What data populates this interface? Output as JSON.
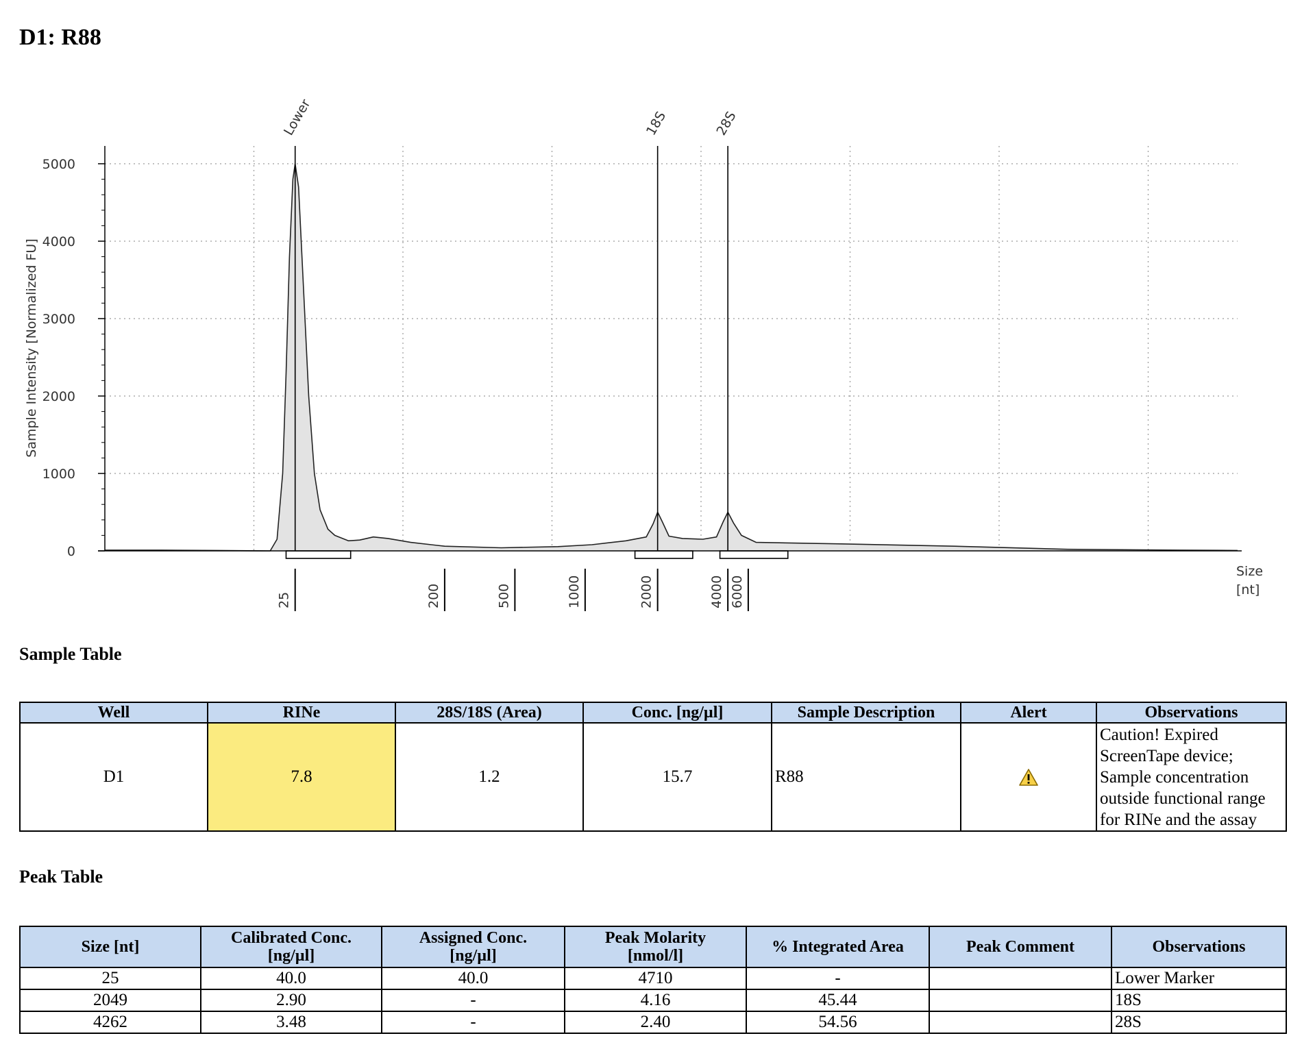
{
  "page_title": "D1: R88",
  "chart_data": {
    "type": "area",
    "ylabel": "Sample Intensity [Normalized FU]",
    "xlabel": "Size\n[nt]",
    "xlabel_lines": [
      "Size",
      "[nt]"
    ],
    "ylim": [
      0,
      5000
    ],
    "y_ticks": [
      0,
      1000,
      2000,
      3000,
      4000,
      5000
    ],
    "x_size_ticks": [
      {
        "label": "25",
        "position": 0.168
      },
      {
        "label": "200",
        "position": 0.3
      },
      {
        "label": "500",
        "position": 0.362
      },
      {
        "label": "1000",
        "position": 0.424
      },
      {
        "label": "2000",
        "position": 0.488
      },
      {
        "label": "4000",
        "position": 0.55
      },
      {
        "label": "6000",
        "position": 0.568
      }
    ],
    "grid": true,
    "peak_labels": [
      {
        "label": "Lower",
        "position": 0.168
      },
      {
        "label": "18S",
        "position": 0.488
      },
      {
        "label": "28S",
        "position": 0.55
      }
    ],
    "trace": [
      [
        0,
        10
      ],
      [
        0.05,
        10
      ],
      [
        0.1,
        5
      ],
      [
        0.146,
        0
      ],
      [
        0.152,
        150
      ],
      [
        0.157,
        1000
      ],
      [
        0.16,
        2300
      ],
      [
        0.163,
        3800
      ],
      [
        0.166,
        4800
      ],
      [
        0.168,
        5000
      ],
      [
        0.171,
        4700
      ],
      [
        0.175,
        3500
      ],
      [
        0.18,
        2000
      ],
      [
        0.185,
        1000
      ],
      [
        0.19,
        530
      ],
      [
        0.197,
        280
      ],
      [
        0.203,
        200
      ],
      [
        0.215,
        130
      ],
      [
        0.225,
        140
      ],
      [
        0.237,
        180
      ],
      [
        0.25,
        160
      ],
      [
        0.27,
        110
      ],
      [
        0.3,
        60
      ],
      [
        0.35,
        40
      ],
      [
        0.4,
        55
      ],
      [
        0.43,
        80
      ],
      [
        0.46,
        130
      ],
      [
        0.478,
        180
      ],
      [
        0.484,
        350
      ],
      [
        0.488,
        500
      ],
      [
        0.492,
        380
      ],
      [
        0.498,
        190
      ],
      [
        0.51,
        160
      ],
      [
        0.528,
        150
      ],
      [
        0.54,
        180
      ],
      [
        0.546,
        380
      ],
      [
        0.55,
        500
      ],
      [
        0.555,
        360
      ],
      [
        0.562,
        200
      ],
      [
        0.575,
        110
      ],
      [
        0.65,
        90
      ],
      [
        0.75,
        60
      ],
      [
        0.85,
        20
      ],
      [
        0.95,
        10
      ],
      [
        1.0,
        5
      ]
    ],
    "integration_ranges": [
      [
        0.16,
        0.217
      ],
      [
        0.468,
        0.519
      ],
      [
        0.543,
        0.603
      ]
    ]
  },
  "sample_table": {
    "title": "Sample Table",
    "headers": [
      "Well",
      "RINe",
      "28S/18S (Area)",
      "Conc. [ng/µl]",
      "Sample Description",
      "Alert",
      "Observations"
    ],
    "rows": [
      {
        "well": "D1",
        "rine": "7.8",
        "ratio": "1.2",
        "conc": "15.7",
        "description": "R88",
        "alert_icon": "warning-triangle-icon",
        "observations": [
          "Caution! Expired",
          "ScreenTape device;",
          "Sample concentration",
          "outside functional range",
          "for RINe and the assay"
        ]
      }
    ]
  },
  "peak_table": {
    "title": "Peak Table",
    "headers": [
      [
        "Size [nt]"
      ],
      [
        "Calibrated Conc.",
        "[ng/µl]"
      ],
      [
        "Assigned Conc.",
        "[ng/µl]"
      ],
      [
        "Peak Molarity",
        "[nmol/l]"
      ],
      [
        "% Integrated Area"
      ],
      [
        "Peak Comment"
      ],
      [
        "Observations"
      ]
    ],
    "rows": [
      [
        "25",
        "40.0",
        "40.0",
        "4710",
        "-",
        "",
        "Lower Marker"
      ],
      [
        "2049",
        "2.90",
        "-",
        "4.16",
        "45.44",
        "",
        "18S"
      ],
      [
        "4262",
        "3.48",
        "-",
        "2.40",
        "54.56",
        "",
        "28S"
      ]
    ]
  },
  "colors": {
    "header_fill": "#c6d9f1",
    "rine_fill": "#fbeb80",
    "trace_fill": "#e3e3e3",
    "alert_fill": "#f7d048"
  }
}
